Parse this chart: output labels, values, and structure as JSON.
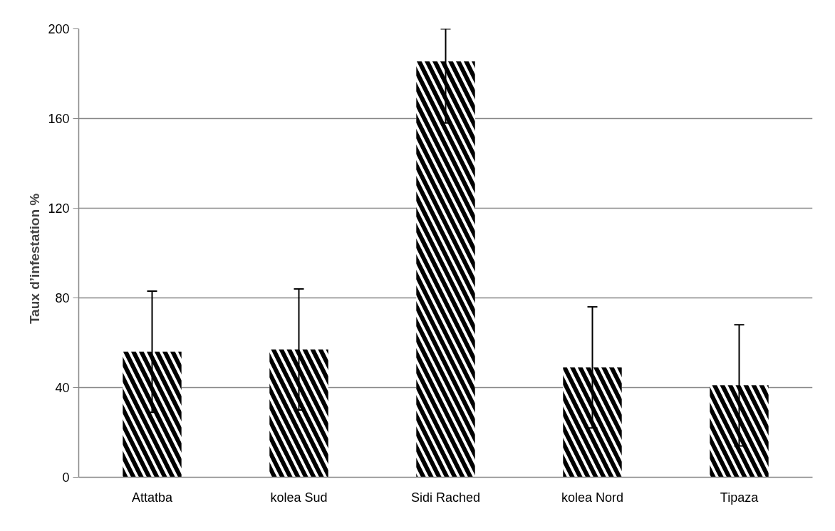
{
  "chart_data": {
    "type": "bar",
    "ylabel": "Taux d’infestation    %",
    "categories": [
      "Attatba",
      "kolea Sud",
      "Sidi Rached",
      "kolea Nord",
      "Tipaza"
    ],
    "values": [
      56,
      57,
      185.5,
      49,
      41
    ],
    "errors": [
      27,
      27,
      [
        158,
        200
      ],
      27,
      27
    ],
    "color": "#000000",
    "ylim": [
      0,
      200
    ],
    "yticks": [
      0,
      40,
      80,
      120,
      160,
      200
    ],
    "grid": "y"
  }
}
